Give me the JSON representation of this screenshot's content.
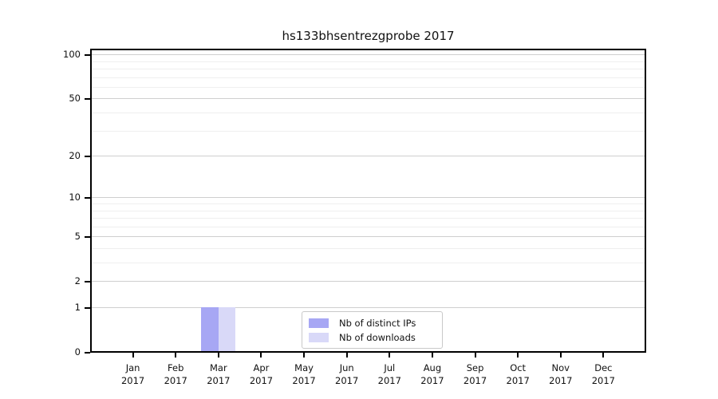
{
  "chart_data": {
    "type": "bar",
    "title": "hs133bhsentrezgprobe 2017",
    "year_label": "2017",
    "categories": [
      "Jan",
      "Feb",
      "Mar",
      "Apr",
      "May",
      "Jun",
      "Jul",
      "Aug",
      "Sep",
      "Oct",
      "Nov",
      "Dec"
    ],
    "y_scale": "log10(1+x)",
    "y_ticks": [
      0,
      1,
      2,
      5,
      10,
      20,
      50,
      100
    ],
    "y_minor_gridlines": [
      3,
      4,
      6,
      7,
      8,
      9,
      30,
      40,
      60,
      70,
      80,
      90
    ],
    "ylim": [
      0,
      110
    ],
    "grid": "horizontal only",
    "legend_position": "inside plot, lower center",
    "series": [
      {
        "name": "Nb of distinct IPs",
        "color": "#a7a7f4",
        "values": [
          0,
          0,
          1,
          0,
          0,
          0,
          0,
          0,
          0,
          0,
          0,
          0
        ]
      },
      {
        "name": "Nb of downloads",
        "color": "#d9d9f8",
        "values": [
          0,
          0,
          1,
          0,
          0,
          0,
          0,
          0,
          0,
          0,
          0,
          0
        ]
      }
    ],
    "colors": {
      "major_grid": "#cfcfcf",
      "minor_grid": "#efefef",
      "axis": "#000000",
      "background": "#ffffff"
    }
  }
}
